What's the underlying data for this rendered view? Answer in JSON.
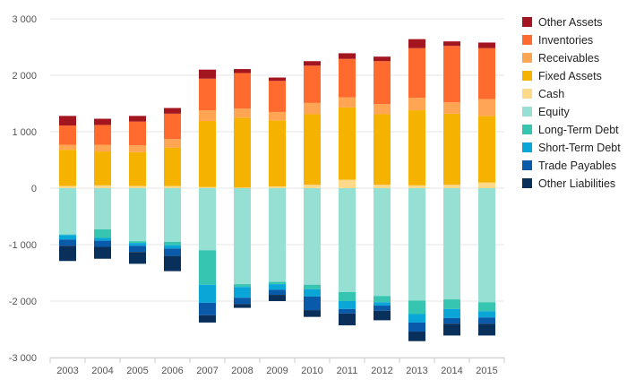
{
  "chart_data": {
    "type": "bar",
    "stacked": true,
    "categories": [
      "2003",
      "2004",
      "2005",
      "2006",
      "2007",
      "2008",
      "2009",
      "2010",
      "2011",
      "2012",
      "2013",
      "2014",
      "2015"
    ],
    "ylim": [
      -3000,
      3000
    ],
    "yticks": [
      -3000,
      -2000,
      -1000,
      0,
      1000,
      2000,
      3000
    ],
    "ytick_labels": [
      "-3 000",
      "-2 000",
      "-1 000",
      "0",
      "1 000",
      "2 000",
      "3 000"
    ],
    "grid": true,
    "legend_position": "right",
    "series": [
      {
        "name": "Other Assets",
        "color": "#a3151f",
        "values": [
          170,
          110,
          100,
          100,
          160,
          70,
          60,
          80,
          100,
          80,
          160,
          80,
          100
        ]
      },
      {
        "name": "Inventories",
        "color": "#ff6a2e",
        "values": [
          340,
          350,
          420,
          450,
          560,
          630,
          550,
          660,
          680,
          760,
          880,
          1000,
          900
        ]
      },
      {
        "name": "Receivables",
        "color": "#ffa553",
        "values": [
          90,
          120,
          120,
          150,
          190,
          160,
          150,
          200,
          180,
          180,
          220,
          200,
          300
        ]
      },
      {
        "name": "Fixed Assets",
        "color": "#f5b300",
        "values": [
          640,
          600,
          600,
          680,
          1170,
          1240,
          1170,
          1250,
          1280,
          1250,
          1330,
          1260,
          1180
        ]
      },
      {
        "name": "Cash",
        "color": "#ffd98a",
        "values": [
          40,
          50,
          40,
          40,
          20,
          10,
          30,
          60,
          150,
          60,
          50,
          60,
          100
        ]
      },
      {
        "name": "Equity",
        "color": "#96dfd3",
        "values": [
          -820,
          -730,
          -940,
          -950,
          -1100,
          -1700,
          -1660,
          -1710,
          -1840,
          -1910,
          -1990,
          -1970,
          -2020
        ]
      },
      {
        "name": "Long-Term Debt",
        "color": "#36c5b0",
        "values": [
          -10,
          -150,
          -30,
          -60,
          -610,
          -50,
          -40,
          -80,
          -160,
          -110,
          -240,
          -170,
          -160
        ]
      },
      {
        "name": "Short-Term Debt",
        "color": "#0aa6d8",
        "values": [
          -80,
          -50,
          -50,
          -60,
          -320,
          -190,
          -100,
          -130,
          -140,
          -60,
          -150,
          -160,
          -110
        ]
      },
      {
        "name": "Trade Payables",
        "color": "#0a5aaa",
        "values": [
          -110,
          -110,
          -110,
          -130,
          -220,
          -110,
          -90,
          -240,
          -80,
          -90,
          -160,
          -100,
          -110
        ]
      },
      {
        "name": "Other Liabilities",
        "color": "#08305a",
        "values": [
          -270,
          -210,
          -210,
          -270,
          -130,
          -70,
          -110,
          -120,
          -210,
          -170,
          -170,
          -210,
          -210
        ]
      }
    ]
  }
}
